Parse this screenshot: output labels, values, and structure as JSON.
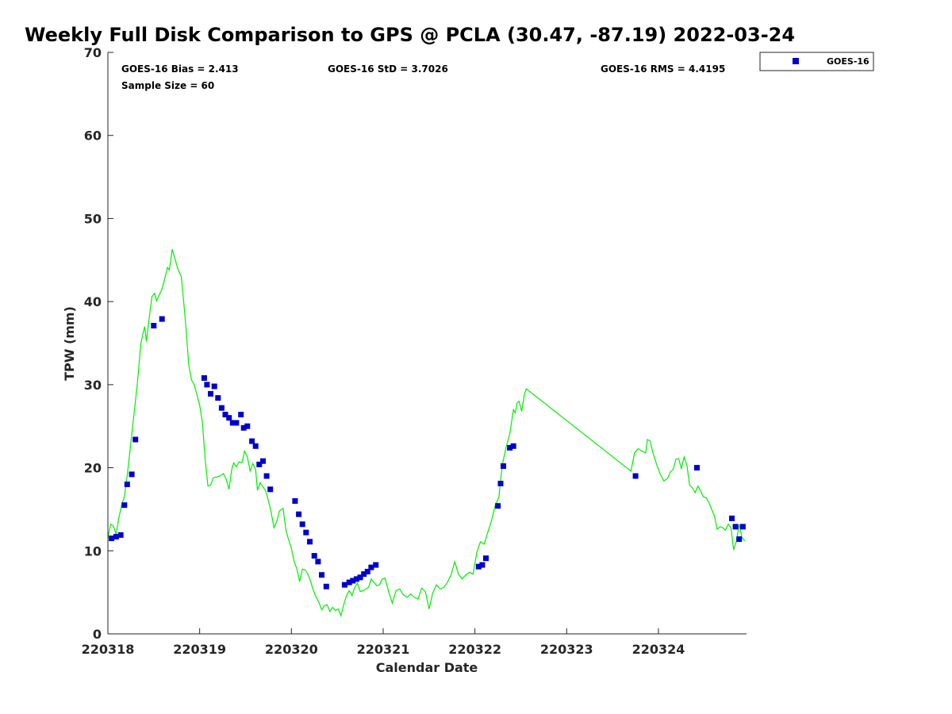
{
  "chart_data": {
    "type": "scatter",
    "title": "Weekly Full Disk Comparison to GPS @ PCLA (30.47, -87.19) 2022-03-24",
    "xlabel": "Calendar Date",
    "ylabel": "TPW (mm)",
    "xlim": [
      0,
      6.96
    ],
    "ylim": [
      0,
      70
    ],
    "x_tick_values": [
      0,
      1,
      2,
      3,
      4,
      5,
      6
    ],
    "x_tick_labels": [
      "220318",
      "220319",
      "220320",
      "220321",
      "220322",
      "220323",
      "220324"
    ],
    "y_ticks": [
      0,
      10,
      20,
      30,
      40,
      50,
      60,
      70
    ],
    "x_unit": "days from 2022-03-18 00:00 UTC",
    "stats": {
      "bias": "GOES-16 Bias = 2.413",
      "sample_size": "Sample Size = 60",
      "std": "GOES-16 StD = 3.7026",
      "rms": "GOES-16 RMS = 4.4195"
    },
    "legend": {
      "position": "top-right-outside",
      "entries": [
        "GOES-16"
      ]
    },
    "series": [
      {
        "name": "GOES-16",
        "kind": "scatter",
        "color": "#0000cc",
        "points": [
          [
            0.04,
            11.5
          ],
          [
            0.09,
            11.7
          ],
          [
            0.14,
            11.9
          ],
          [
            0.18,
            15.5
          ],
          [
            0.21,
            18.0
          ],
          [
            0.26,
            19.2
          ],
          [
            0.3,
            23.4
          ],
          [
            0.5,
            37.1
          ],
          [
            0.59,
            37.9
          ],
          [
            1.05,
            30.8
          ],
          [
            1.08,
            30.0
          ],
          [
            1.12,
            28.9
          ],
          [
            1.16,
            29.8
          ],
          [
            1.2,
            28.4
          ],
          [
            1.24,
            27.2
          ],
          [
            1.28,
            26.4
          ],
          [
            1.32,
            26.0
          ],
          [
            1.36,
            25.4
          ],
          [
            1.4,
            25.4
          ],
          [
            1.45,
            26.4
          ],
          [
            1.48,
            24.8
          ],
          [
            1.52,
            25.0
          ],
          [
            1.57,
            23.2
          ],
          [
            1.61,
            22.6
          ],
          [
            1.65,
            20.4
          ],
          [
            1.69,
            20.8
          ],
          [
            1.73,
            19.0
          ],
          [
            1.77,
            17.4
          ],
          [
            2.04,
            16.0
          ],
          [
            2.08,
            14.4
          ],
          [
            2.12,
            13.2
          ],
          [
            2.16,
            12.2
          ],
          [
            2.2,
            11.1
          ],
          [
            2.25,
            9.4
          ],
          [
            2.29,
            8.7
          ],
          [
            2.33,
            7.1
          ],
          [
            2.38,
            5.7
          ],
          [
            2.58,
            5.9
          ],
          [
            2.63,
            6.2
          ],
          [
            2.67,
            6.4
          ],
          [
            2.71,
            6.6
          ],
          [
            2.75,
            6.8
          ],
          [
            2.79,
            7.2
          ],
          [
            2.83,
            7.5
          ],
          [
            2.87,
            8.0
          ],
          [
            2.92,
            8.3
          ],
          [
            4.04,
            8.1
          ],
          [
            4.08,
            8.3
          ],
          [
            4.12,
            9.1
          ],
          [
            4.25,
            15.4
          ],
          [
            4.28,
            18.1
          ],
          [
            4.31,
            20.2
          ],
          [
            4.38,
            22.4
          ],
          [
            4.42,
            22.6
          ],
          [
            5.75,
            19.0
          ],
          [
            6.42,
            20.0
          ],
          [
            6.8,
            13.9
          ],
          [
            6.84,
            12.9
          ],
          [
            6.88,
            11.4
          ],
          [
            6.92,
            12.9
          ]
        ]
      },
      {
        "name": "GPS",
        "kind": "line",
        "color": "#00ee00",
        "points": [
          [
            0.0,
            11.5
          ],
          [
            0.03,
            13.2
          ],
          [
            0.06,
            13.0
          ],
          [
            0.09,
            12.0
          ],
          [
            0.12,
            14.0
          ],
          [
            0.15,
            15.5
          ],
          [
            0.18,
            16.5
          ],
          [
            0.21,
            19.0
          ],
          [
            0.24,
            22.0
          ],
          [
            0.28,
            26.0
          ],
          [
            0.32,
            30.0
          ],
          [
            0.36,
            35.0
          ],
          [
            0.4,
            37.0
          ],
          [
            0.42,
            35.2
          ],
          [
            0.45,
            38.0
          ],
          [
            0.48,
            40.6
          ],
          [
            0.51,
            41.0
          ],
          [
            0.53,
            40.1
          ],
          [
            0.56,
            40.8
          ],
          [
            0.59,
            41.5
          ],
          [
            0.62,
            42.8
          ],
          [
            0.65,
            44.1
          ],
          [
            0.67,
            43.8
          ],
          [
            0.7,
            46.3
          ],
          [
            0.73,
            45.2
          ],
          [
            0.76,
            44.0
          ],
          [
            0.8,
            43.0
          ],
          [
            0.83,
            39.5
          ],
          [
            0.85,
            37.0
          ],
          [
            0.88,
            32.5
          ],
          [
            0.91,
            30.6
          ],
          [
            0.94,
            30.0
          ],
          [
            0.97,
            28.8
          ],
          [
            1.0,
            27.5
          ],
          [
            1.03,
            25.5
          ],
          [
            1.06,
            21.0
          ],
          [
            1.09,
            17.8
          ],
          [
            1.12,
            17.9
          ],
          [
            1.15,
            18.8
          ],
          [
            1.19,
            18.9
          ],
          [
            1.22,
            19.0
          ],
          [
            1.26,
            19.3
          ],
          [
            1.29,
            18.6
          ],
          [
            1.32,
            17.4
          ],
          [
            1.35,
            19.8
          ],
          [
            1.37,
            20.6
          ],
          [
            1.4,
            20.1
          ],
          [
            1.43,
            20.7
          ],
          [
            1.46,
            20.6
          ],
          [
            1.49,
            22.0
          ],
          [
            1.52,
            21.3
          ],
          [
            1.55,
            19.6
          ],
          [
            1.58,
            20.5
          ],
          [
            1.61,
            19.8
          ],
          [
            1.63,
            17.3
          ],
          [
            1.66,
            18.2
          ],
          [
            1.69,
            17.7
          ],
          [
            1.72,
            17.2
          ],
          [
            1.75,
            16.0
          ],
          [
            1.78,
            14.6
          ],
          [
            1.81,
            12.8
          ],
          [
            1.84,
            13.5
          ],
          [
            1.87,
            14.8
          ],
          [
            1.91,
            15.1
          ],
          [
            1.94,
            12.5
          ],
          [
            1.97,
            11.3
          ],
          [
            2.0,
            10.3
          ],
          [
            2.03,
            8.7
          ],
          [
            2.06,
            7.8
          ],
          [
            2.09,
            6.3
          ],
          [
            2.12,
            7.8
          ],
          [
            2.15,
            7.7
          ],
          [
            2.18,
            7.2
          ],
          [
            2.21,
            6.3
          ],
          [
            2.24,
            5.2
          ],
          [
            2.27,
            4.4
          ],
          [
            2.3,
            3.8
          ],
          [
            2.33,
            2.9
          ],
          [
            2.36,
            3.4
          ],
          [
            2.39,
            3.5
          ],
          [
            2.42,
            2.7
          ],
          [
            2.45,
            3.2
          ],
          [
            2.48,
            2.8
          ],
          [
            2.51,
            3.0
          ],
          [
            2.54,
            2.2
          ],
          [
            2.57,
            3.5
          ],
          [
            2.6,
            4.6
          ],
          [
            2.63,
            5.2
          ],
          [
            2.66,
            4.6
          ],
          [
            2.69,
            5.6
          ],
          [
            2.72,
            6.1
          ],
          [
            2.75,
            5.1
          ],
          [
            2.78,
            5.2
          ],
          [
            2.81,
            5.4
          ],
          [
            2.84,
            5.6
          ],
          [
            2.87,
            6.6
          ],
          [
            2.9,
            6.2
          ],
          [
            2.93,
            5.8
          ],
          [
            2.96,
            5.9
          ],
          [
            2.99,
            6.6
          ],
          [
            3.02,
            6.7
          ],
          [
            3.06,
            5.1
          ],
          [
            3.1,
            3.7
          ],
          [
            3.14,
            5.2
          ],
          [
            3.18,
            5.4
          ],
          [
            3.22,
            4.7
          ],
          [
            3.26,
            4.4
          ],
          [
            3.3,
            4.8
          ],
          [
            3.34,
            4.4
          ],
          [
            3.38,
            4.2
          ],
          [
            3.42,
            5.5
          ],
          [
            3.46,
            5.1
          ],
          [
            3.5,
            3.0
          ],
          [
            3.54,
            4.9
          ],
          [
            3.58,
            5.9
          ],
          [
            3.62,
            5.4
          ],
          [
            3.66,
            5.6
          ],
          [
            3.7,
            6.2
          ],
          [
            3.74,
            7.1
          ],
          [
            3.78,
            8.7
          ],
          [
            3.82,
            7.2
          ],
          [
            3.86,
            6.6
          ],
          [
            3.9,
            7.1
          ],
          [
            3.94,
            7.4
          ],
          [
            3.98,
            7.2
          ],
          [
            4.02,
            9.8
          ],
          [
            4.06,
            11.1
          ],
          [
            4.1,
            10.8
          ],
          [
            4.14,
            12.2
          ],
          [
            4.18,
            13.6
          ],
          [
            4.22,
            15.4
          ],
          [
            4.26,
            16.4
          ],
          [
            4.3,
            20.4
          ],
          [
            4.34,
            22.5
          ],
          [
            4.38,
            24.1
          ],
          [
            4.42,
            27.0
          ],
          [
            4.44,
            26.6
          ],
          [
            4.46,
            27.8
          ],
          [
            4.48,
            28.0
          ],
          [
            4.51,
            26.8
          ],
          [
            4.54,
            28.9
          ],
          [
            4.56,
            29.5
          ],
          [
            5.7,
            19.6
          ],
          [
            5.74,
            21.8
          ],
          [
            5.78,
            22.3
          ],
          [
            5.82,
            22.0
          ],
          [
            5.86,
            21.8
          ],
          [
            5.88,
            23.4
          ],
          [
            5.91,
            23.2
          ],
          [
            5.94,
            21.8
          ],
          [
            5.98,
            20.4
          ],
          [
            6.02,
            19.2
          ],
          [
            6.06,
            18.4
          ],
          [
            6.1,
            18.7
          ],
          [
            6.13,
            19.5
          ],
          [
            6.16,
            19.8
          ],
          [
            6.19,
            21.0
          ],
          [
            6.22,
            21.1
          ],
          [
            6.25,
            19.9
          ],
          [
            6.28,
            21.3
          ],
          [
            6.31,
            20.3
          ],
          [
            6.34,
            17.9
          ],
          [
            6.37,
            17.6
          ],
          [
            6.4,
            17.0
          ],
          [
            6.43,
            17.8
          ],
          [
            6.46,
            17.2
          ],
          [
            6.49,
            16.5
          ],
          [
            6.52,
            16.4
          ],
          [
            6.55,
            15.8
          ],
          [
            6.58,
            15.0
          ],
          [
            6.61,
            14.2
          ],
          [
            6.64,
            12.6
          ],
          [
            6.67,
            12.9
          ],
          [
            6.7,
            12.8
          ],
          [
            6.73,
            12.5
          ],
          [
            6.76,
            13.2
          ],
          [
            6.79,
            12.8
          ],
          [
            6.82,
            10.1
          ],
          [
            6.85,
            11.2
          ],
          [
            6.88,
            13.2
          ],
          [
            6.91,
            11.6
          ],
          [
            6.94,
            11.2
          ]
        ]
      }
    ]
  }
}
